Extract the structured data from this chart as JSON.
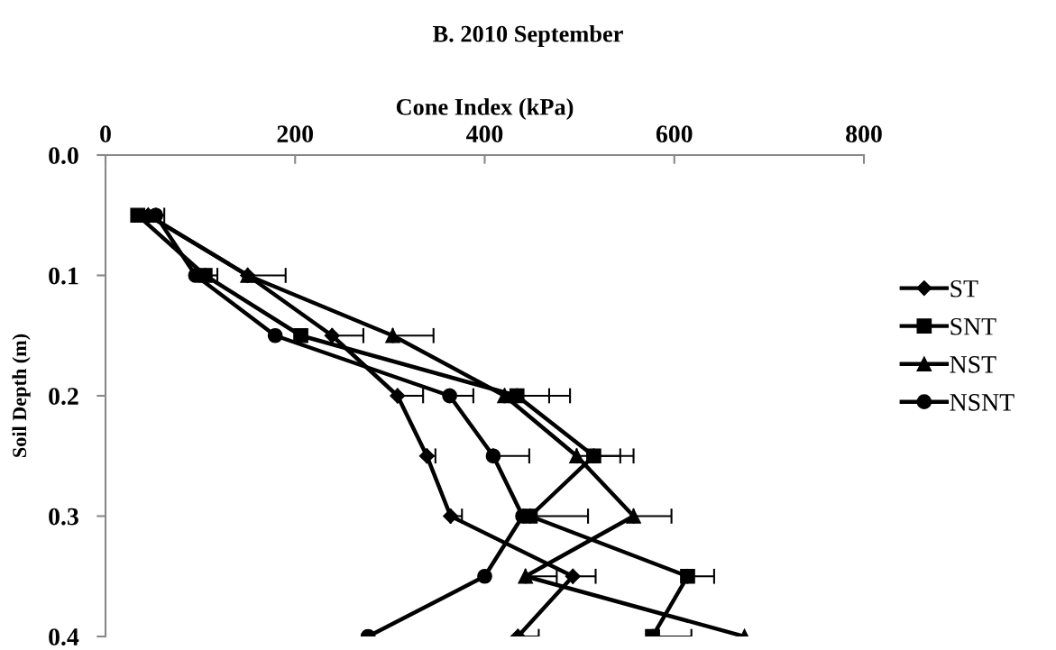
{
  "chart_data": {
    "type": "line",
    "title": "B. 2010 September",
    "xlabel": "Cone Index (kPa)",
    "ylabel": "Soil Depth (m)",
    "xlim": [
      0,
      800
    ],
    "xticks": [
      0,
      200,
      400,
      600,
      800
    ],
    "ylim": [
      0.4,
      0.0
    ],
    "yticks": [
      {
        "value": 0.0,
        "label": "0.0"
      },
      {
        "value": 0.1,
        "label": "0.1"
      },
      {
        "value": 0.2,
        "label": "0.2"
      },
      {
        "value": 0.3,
        "label": "0.3"
      },
      {
        "value": 0.4,
        "label": "0.4"
      }
    ],
    "grid": false,
    "legend": "right",
    "line_style": "solid",
    "series": [
      {
        "name": "ST",
        "color": "#000000",
        "marker": "diamond",
        "x": [
          45,
          150,
          239,
          308,
          339,
          364,
          493,
          435
        ],
        "values": [
          0.05,
          0.1,
          0.15,
          0.2,
          0.25,
          0.3,
          0.35,
          0.4
        ],
        "xerrors": [
          null,
          null,
          [
            239,
            272
          ],
          [
            308,
            335
          ],
          [
            339,
            348
          ],
          [
            364,
            376
          ],
          [
            493,
            517
          ],
          [
            435,
            457
          ]
        ]
      },
      {
        "name": "SNT",
        "color": "#000000",
        "marker": "square",
        "x": [
          34,
          105,
          206,
          434,
          515,
          448,
          614,
          577
        ],
        "values": [
          0.05,
          0.1,
          0.15,
          0.2,
          0.25,
          0.3,
          0.35,
          0.4
        ],
        "xerrors": [
          null,
          [
            105,
            118
          ],
          null,
          [
            434,
            490
          ],
          [
            515,
            557
          ],
          [
            448,
            509
          ],
          [
            614,
            642
          ],
          [
            577,
            618
          ]
        ]
      },
      {
        "name": "NST",
        "color": "#000000",
        "marker": "triangle",
        "x": [
          45,
          150,
          303,
          421,
          497,
          557,
          443,
          674
        ],
        "values": [
          0.05,
          0.1,
          0.15,
          0.2,
          0.25,
          0.3,
          0.35,
          0.4
        ],
        "xerrors": [
          null,
          [
            150,
            190
          ],
          [
            303,
            346
          ],
          [
            421,
            468
          ],
          [
            497,
            543
          ],
          [
            557,
            597
          ],
          [
            443,
            476
          ],
          null
        ]
      },
      {
        "name": "NSNT",
        "color": "#000000",
        "marker": "circle",
        "x": [
          53,
          95,
          179,
          363,
          409,
          440,
          400,
          277
        ],
        "values": [
          0.05,
          0.1,
          0.15,
          0.2,
          0.25,
          0.3,
          0.35,
          0.4
        ],
        "xerrors": [
          [
            53,
            62
          ],
          null,
          null,
          [
            363,
            388
          ],
          [
            409,
            447
          ],
          null,
          null,
          null
        ]
      }
    ]
  }
}
